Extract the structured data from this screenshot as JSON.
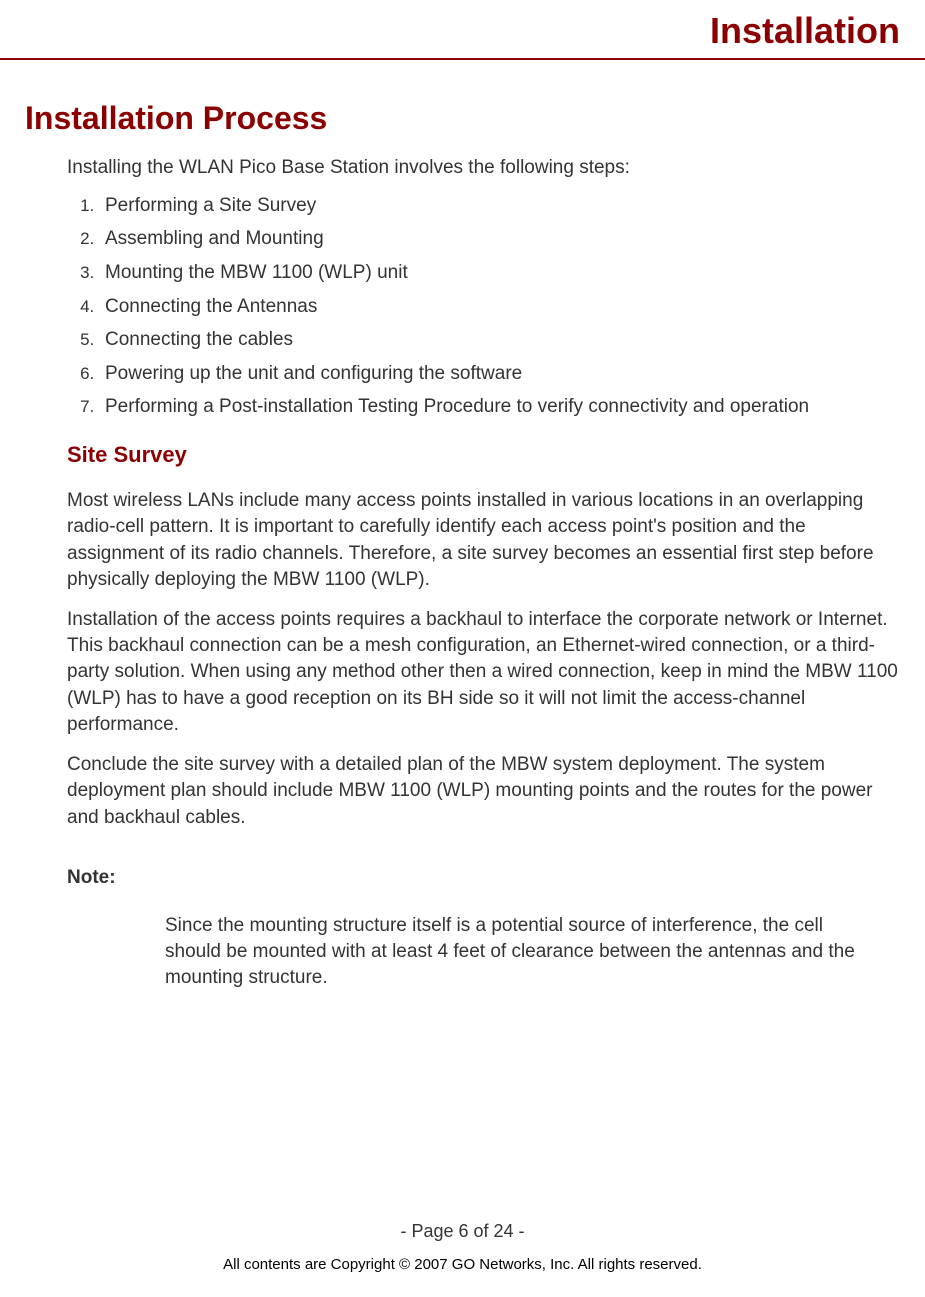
{
  "header": {
    "title": "Installation"
  },
  "main": {
    "heading": "Installation Process",
    "intro": "Installing the WLAN Pico Base Station involves the following steps:",
    "steps": {
      "s1": "Performing a Site Survey",
      "s2": "Assembling and Mounting",
      "s3": "Mounting the MBW 1100 (WLP) unit",
      "s4": "Connecting the Antennas",
      "s5": "Connecting the cables",
      "s6": "Powering up the unit and configuring the software",
      "s7": "Performing a Post-installation Testing Procedure to verify connectivity and operation"
    },
    "subheading": "Site Survey",
    "para1": "Most wireless LANs include many access points installed in various locations in an overlapping radio-cell pattern. It is important to carefully identify each access point's position and the assignment of its radio channels. Therefore, a site survey becomes an essential first step before physically deploying the MBW 1100 (WLP).",
    "para2": "Installation of the access points requires a backhaul to interface the corporate network or Internet. This backhaul connection can be a mesh configuration, an Ethernet-wired connection, or a third-party solution. When using any method other then a wired connection, keep in mind the MBW 1100 (WLP) has to have a good reception on its BH side so it will not limit the access-channel performance.",
    "para3": "Conclude the site survey with a detailed plan of the MBW system deployment. The system deployment plan should include MBW 1100 (WLP) mounting points and the routes for the power and backhaul cables.",
    "note_label": "Note:",
    "note_body": "Since the mounting structure itself is a potential source of interference, the cell should be mounted with at least 4 feet of clearance between the antennas and the mounting structure."
  },
  "footer": {
    "page": "- Page 6 of 24 -",
    "copyright": "All contents are Copyright © 2007 GO Networks, Inc. All rights reserved."
  }
}
